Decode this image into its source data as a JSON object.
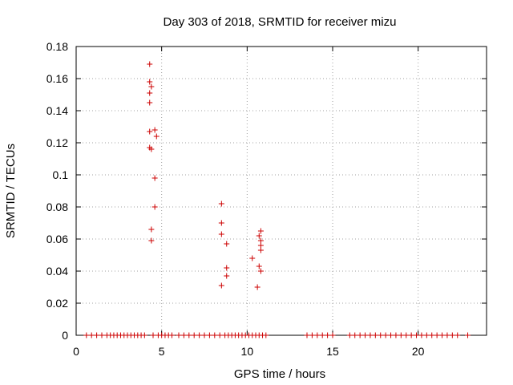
{
  "chart_data": {
    "type": "scatter",
    "title": "Day 303 of 2018, SRMTID for receiver mizu",
    "xlabel": "GPS time / hours",
    "ylabel": "SRMTID / TECUs",
    "xlim": [
      0,
      24
    ],
    "ylim": [
      0,
      0.18
    ],
    "xticks": [
      "0",
      "5",
      "10",
      "15",
      "20"
    ],
    "yticks": [
      "0",
      "0.02",
      "0.04",
      "0.06",
      "0.08",
      "0.1",
      "0.12",
      "0.14",
      "0.16",
      "0.18"
    ],
    "grid": true,
    "marker": "+",
    "color": "#cc0000",
    "series": [
      {
        "points": [
          [
            4.3,
            0.169
          ],
          [
            4.3,
            0.158
          ],
          [
            4.4,
            0.155
          ],
          [
            4.3,
            0.151
          ],
          [
            4.3,
            0.145
          ],
          [
            4.3,
            0.127
          ],
          [
            4.6,
            0.128
          ],
          [
            4.7,
            0.124
          ],
          [
            4.3,
            0.117
          ],
          [
            4.4,
            0.116
          ],
          [
            4.6,
            0.098
          ],
          [
            4.6,
            0.08
          ],
          [
            4.4,
            0.066
          ],
          [
            4.4,
            0.059
          ],
          [
            8.5,
            0.082
          ],
          [
            8.5,
            0.07
          ],
          [
            8.5,
            0.063
          ],
          [
            8.8,
            0.057
          ],
          [
            8.8,
            0.042
          ],
          [
            8.8,
            0.037
          ],
          [
            8.5,
            0.031
          ],
          [
            10.8,
            0.065
          ],
          [
            10.7,
            0.062
          ],
          [
            10.8,
            0.059
          ],
          [
            10.8,
            0.056
          ],
          [
            10.8,
            0.053
          ],
          [
            10.3,
            0.048
          ],
          [
            10.7,
            0.043
          ],
          [
            10.8,
            0.04
          ],
          [
            10.6,
            0.03
          ],
          [
            0.6,
            0
          ],
          [
            0.9,
            0
          ],
          [
            1.2,
            0
          ],
          [
            1.5,
            0
          ],
          [
            1.8,
            0
          ],
          [
            2.0,
            0
          ],
          [
            2.2,
            0
          ],
          [
            2.4,
            0
          ],
          [
            2.6,
            0
          ],
          [
            2.8,
            0
          ],
          [
            3.0,
            0
          ],
          [
            3.2,
            0
          ],
          [
            3.4,
            0
          ],
          [
            3.6,
            0
          ],
          [
            3.8,
            0
          ],
          [
            4.0,
            0
          ],
          [
            4.5,
            0
          ],
          [
            4.8,
            0
          ],
          [
            5.0,
            0
          ],
          [
            5.2,
            0
          ],
          [
            5.4,
            0
          ],
          [
            5.6,
            0
          ],
          [
            6.0,
            0
          ],
          [
            6.3,
            0
          ],
          [
            6.6,
            0
          ],
          [
            6.9,
            0
          ],
          [
            7.2,
            0
          ],
          [
            7.5,
            0
          ],
          [
            7.8,
            0
          ],
          [
            8.1,
            0
          ],
          [
            8.4,
            0
          ],
          [
            8.7,
            0
          ],
          [
            8.9,
            0
          ],
          [
            9.1,
            0
          ],
          [
            9.3,
            0
          ],
          [
            9.5,
            0
          ],
          [
            9.7,
            0
          ],
          [
            9.9,
            0
          ],
          [
            10.1,
            0
          ],
          [
            10.3,
            0
          ],
          [
            10.5,
            0
          ],
          [
            10.7,
            0
          ],
          [
            10.9,
            0
          ],
          [
            11.1,
            0
          ],
          [
            13.5,
            0
          ],
          [
            13.8,
            0
          ],
          [
            14.1,
            0
          ],
          [
            14.4,
            0
          ],
          [
            14.7,
            0
          ],
          [
            15.0,
            0
          ],
          [
            16.0,
            0
          ],
          [
            16.3,
            0
          ],
          [
            16.6,
            0
          ],
          [
            16.9,
            0
          ],
          [
            17.2,
            0
          ],
          [
            17.5,
            0
          ],
          [
            17.8,
            0
          ],
          [
            18.1,
            0
          ],
          [
            18.4,
            0
          ],
          [
            18.7,
            0
          ],
          [
            19.0,
            0
          ],
          [
            19.3,
            0
          ],
          [
            19.6,
            0
          ],
          [
            19.9,
            0
          ],
          [
            20.2,
            0
          ],
          [
            20.5,
            0
          ],
          [
            20.8,
            0
          ],
          [
            21.1,
            0
          ],
          [
            21.4,
            0
          ],
          [
            21.7,
            0
          ],
          [
            22.0,
            0
          ],
          [
            22.3,
            0
          ],
          [
            22.9,
            0
          ]
        ]
      }
    ]
  }
}
